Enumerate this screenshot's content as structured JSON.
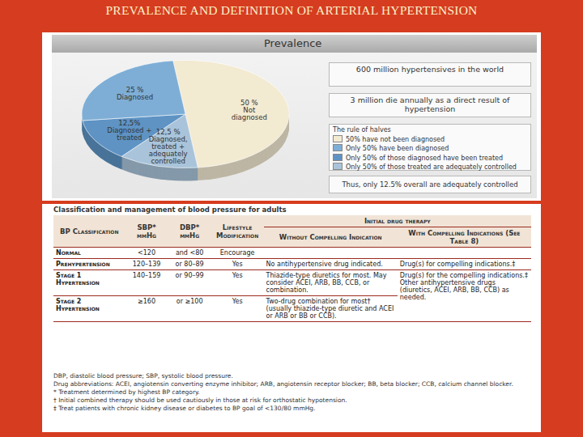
{
  "title": "PREVALENCE AND DEFINITION OF ARTERIAL HYPERTENSION",
  "chart_data": {
    "type": "pie",
    "title": "Prevalence",
    "categories": [
      "Not diagnosed",
      "Diagnosed, treated + adequately controlled",
      "Diagnosed + treated",
      "Diagnosed"
    ],
    "values": [
      50,
      12.5,
      12.5,
      25
    ],
    "value_labels": [
      "50 %",
      "12,5 %",
      "12,5%",
      "25 %"
    ],
    "colors": [
      "#f3ead2",
      "#a9c4da",
      "#5e93c4",
      "#7eaed6"
    ],
    "data_labels": true
  },
  "facts": [
    "600 million hypertensives in the world",
    "3 million die annually as a direct result of hypertension"
  ],
  "legend": {
    "title": "The rule of halves",
    "items": [
      {
        "label": "50% have not been diagnosed",
        "color": "#f3ead2"
      },
      {
        "label": "Only 50% have been diagnosed",
        "color": "#7eaed6"
      },
      {
        "label": "Only 50% of those diagnosed have been treated",
        "color": "#5e93c4"
      },
      {
        "label": "Only 50% of those treated are adequately controlled",
        "color": "#a9c4da"
      }
    ]
  },
  "conclusion": "Thus, only 12.5% overall are adequately controlled",
  "table": {
    "caption": "Classification and management of blood pressure for adults",
    "group_header": "Initial drug therapy",
    "columns": [
      "BP Classification",
      "SBP* mmHg",
      "DBP* mmHg",
      "Lifestyle Modification",
      "Without Compelling Indication",
      "With Compelling Indications (See Table 8)"
    ],
    "rows": [
      [
        "Normal",
        "<120",
        "and <80",
        "Encourage"
      ],
      [
        "Prehypertension",
        "120–139",
        "or 80–89",
        "Yes",
        "No antihypertensive drug indicated.",
        "Drug(s) for compelling indications.‡"
      ],
      [
        "Stage 1 Hypertension",
        "140–159",
        "or 90–99",
        "Yes",
        "Thiazide-type diuretics for most. May consider ACEI, ARB, BB, CCB, or combination.",
        "Drug(s) for the compelling indications.‡ Other antihypertensive drugs (diuretics, ACEI, ARB, BB, CCB) as needed."
      ],
      [
        "Stage 2 Hypertension",
        "≥160",
        "or ≥100",
        "Yes",
        "Two-drug combination for most† (usually thiazide-type diuretic and ACEI or ARB or BB or CCB)."
      ]
    ],
    "footnotes": [
      "DBP, diastolic blood pressure; SBP, systolic blood pressure.",
      "Drug abbreviations: ACEI, angiotensin converting enzyme inhibitor; ARB, angiotensin receptor blocker; BB, beta blocker; CCB, calcium channel blocker.",
      "* Treatment determined by highest BP category.",
      "† Initial combined therapy should be used cautiously in those at risk for orthostatic hypotension.",
      "‡ Treat patients with chronic kidney disease or diabetes to BP goal of <130/80 mmHg."
    ]
  }
}
